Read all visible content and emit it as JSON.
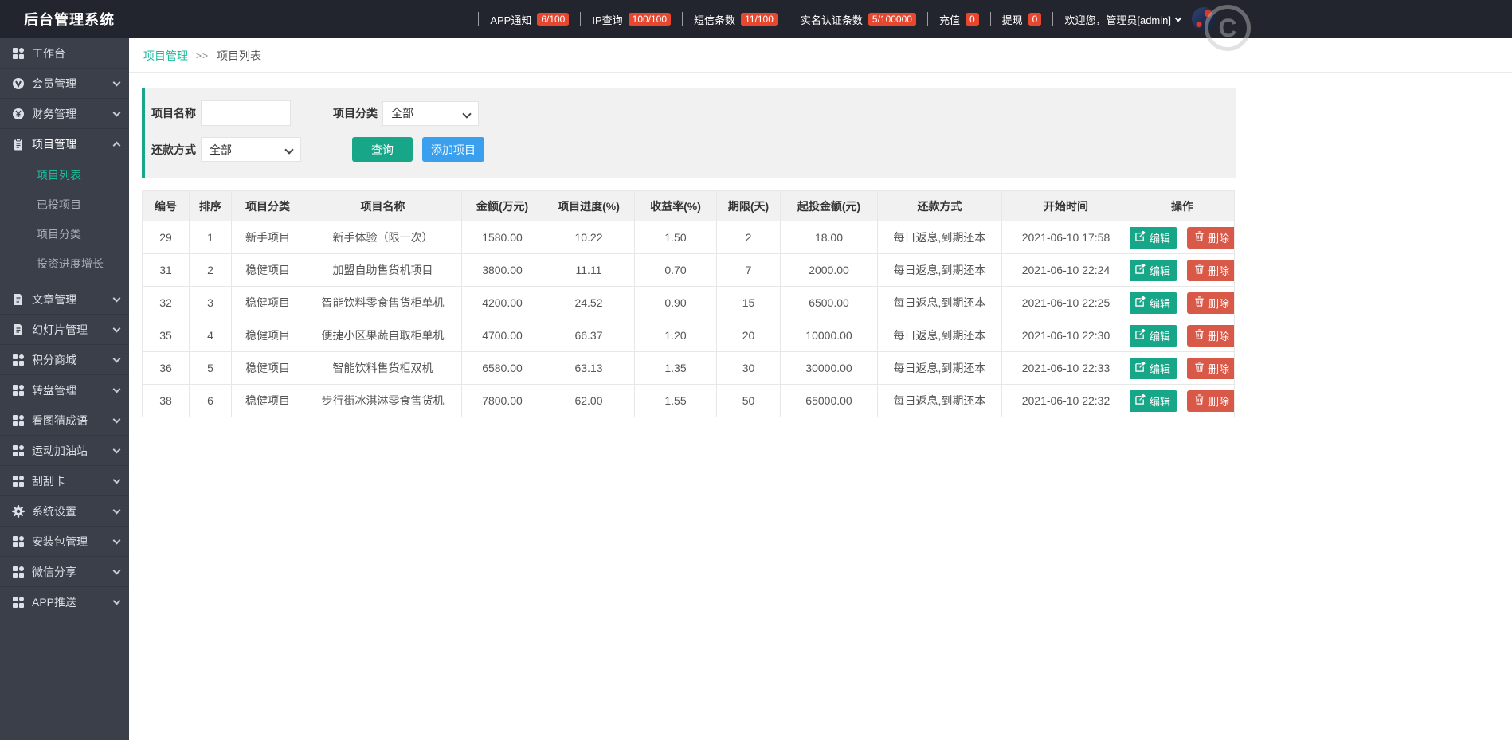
{
  "header": {
    "title": "后台管理系统",
    "stats": [
      {
        "label": "APP通知",
        "badge": "6/100"
      },
      {
        "label": "IP查询",
        "badge": "100/100"
      },
      {
        "label": "短信条数",
        "badge": "11/100"
      },
      {
        "label": "实名认证条数",
        "badge": "5/100000"
      },
      {
        "label": "充值",
        "badge": "0"
      },
      {
        "label": "提现",
        "badge": "0"
      }
    ],
    "welcome": "欢迎您，管理员[admin]",
    "watermark": "C",
    "badge_color": "#e8472f"
  },
  "sidebar": {
    "items": [
      {
        "key": "workbench",
        "label": "工作台",
        "icon": "grid",
        "chevron": null
      },
      {
        "key": "members",
        "label": "会员管理",
        "icon": "member",
        "chevron": "down"
      },
      {
        "key": "finance",
        "label": "财务管理",
        "icon": "finance",
        "chevron": "down"
      },
      {
        "key": "projects",
        "label": "项目管理",
        "icon": "clipboard",
        "chevron": "up",
        "active": true,
        "children": [
          {
            "key": "project-list",
            "label": "项目列表",
            "active": true
          },
          {
            "key": "invested-projects",
            "label": "已投项目"
          },
          {
            "key": "project-categories",
            "label": "项目分类"
          },
          {
            "key": "investment-progress",
            "label": "投资进度增长"
          }
        ]
      },
      {
        "key": "articles",
        "label": "文章管理",
        "icon": "doc",
        "chevron": "down"
      },
      {
        "key": "slides",
        "label": "幻灯片管理",
        "icon": "doc",
        "chevron": "down"
      },
      {
        "key": "points-mall",
        "label": "积分商城",
        "icon": "grid",
        "chevron": "down"
      },
      {
        "key": "wheel",
        "label": "转盘管理",
        "icon": "grid",
        "chevron": "down"
      },
      {
        "key": "idiom-game",
        "label": "看图猜成语",
        "icon": "grid",
        "chevron": "down"
      },
      {
        "key": "sports",
        "label": "运动加油站",
        "icon": "grid",
        "chevron": "down"
      },
      {
        "key": "scratch-card",
        "label": "刮刮卡",
        "icon": "grid",
        "chevron": "down"
      },
      {
        "key": "settings",
        "label": "系统设置",
        "icon": "gear",
        "chevron": "down"
      },
      {
        "key": "packages",
        "label": "安装包管理",
        "icon": "grid",
        "chevron": "down"
      },
      {
        "key": "wechat-share",
        "label": "微信分享",
        "icon": "grid",
        "chevron": "down"
      },
      {
        "key": "app-push",
        "label": "APP推送",
        "icon": "grid",
        "chevron": "down"
      }
    ]
  },
  "breadcrumb": {
    "parent": "项目管理",
    "separator": ">>",
    "current": "项目列表"
  },
  "filters": {
    "name_label": "项目名称",
    "name_value": "",
    "category_label": "项目分类",
    "category_value": "全部",
    "repay_label": "还款方式",
    "repay_value": "全部",
    "search_button": "查询",
    "add_button": "添加项目"
  },
  "table": {
    "columns": [
      "编号",
      "排序",
      "项目分类",
      "项目名称",
      "金额(万元)",
      "项目进度(%)",
      "收益率(%)",
      "期限(天)",
      "起投金额(元)",
      "还款方式",
      "开始时间",
      "操作"
    ],
    "edit_label": "编辑",
    "delete_label": "删除",
    "rows": [
      [
        "29",
        "1",
        "新手项目",
        "新手体验（限一次）",
        "1580.00",
        "10.22",
        "1.50",
        "2",
        "18.00",
        "每日返息,到期还本",
        "2021-06-10 17:58"
      ],
      [
        "31",
        "2",
        "稳健项目",
        "加盟自助售货机项目",
        "3800.00",
        "11.11",
        "0.70",
        "7",
        "2000.00",
        "每日返息,到期还本",
        "2021-06-10 22:24"
      ],
      [
        "32",
        "3",
        "稳健项目",
        "智能饮料零食售货柜单机",
        "4200.00",
        "24.52",
        "0.90",
        "15",
        "6500.00",
        "每日返息,到期还本",
        "2021-06-10 22:25"
      ],
      [
        "35",
        "4",
        "稳健项目",
        "便捷小区果蔬自取柜单机",
        "4700.00",
        "66.37",
        "1.20",
        "20",
        "10000.00",
        "每日返息,到期还本",
        "2021-06-10 22:30"
      ],
      [
        "36",
        "5",
        "稳健项目",
        "智能饮料售货柜双机",
        "6580.00",
        "63.13",
        "1.35",
        "30",
        "30000.00",
        "每日返息,到期还本",
        "2021-06-10 22:33"
      ],
      [
        "38",
        "6",
        "稳健项目",
        "步行街冰淇淋零食售货机",
        "7800.00",
        "62.00",
        "1.55",
        "50",
        "65000.00",
        "每日返息,到期还本",
        "2021-06-10 22:32"
      ]
    ]
  }
}
